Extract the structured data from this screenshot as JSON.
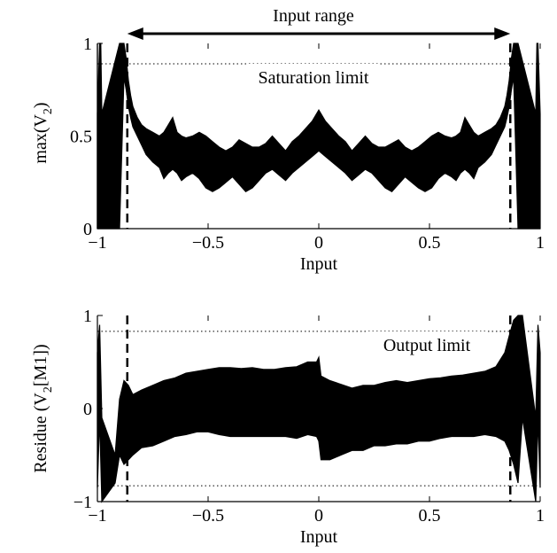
{
  "chart_data": [
    {
      "type": "line",
      "title": "",
      "xlabel": "Input",
      "ylabel_main": "max(V",
      "ylabel_sub": "2",
      "ylabel_tail": ")",
      "xlim": [
        -1,
        1
      ],
      "ylim": [
        0,
        1
      ],
      "xticks": [
        -1,
        -0.5,
        0,
        0.5,
        1
      ],
      "xtick_labels": [
        "−1",
        "−0.5",
        "0",
        "0.5",
        "1"
      ],
      "yticks": [
        0,
        0.5,
        1
      ],
      "ytick_labels": [
        "0",
        "0.5",
        "1"
      ],
      "grid": false,
      "reference_lines": [
        {
          "orientation": "horizontal",
          "value": 0.89,
          "style": "dotted",
          "label": "Saturation limit"
        },
        {
          "orientation": "vertical",
          "value": -0.865,
          "style": "dashed"
        },
        {
          "orientation": "vertical",
          "value": 0.865,
          "style": "dashed"
        }
      ],
      "annotations": [
        {
          "text": "Input range",
          "type": "double-arrow",
          "from_x": -0.865,
          "to_x": 0.865
        }
      ],
      "series": [
        {
          "x": [
            -1.0,
            -0.99,
            -0.985,
            -0.98,
            -0.9,
            -0.88,
            -0.87,
            -0.86,
            -0.85,
            -0.84,
            -0.82,
            -0.8,
            -0.78,
            -0.75,
            -0.72,
            -0.7,
            -0.68,
            -0.66,
            -0.64,
            -0.62,
            -0.6,
            -0.57,
            -0.54,
            -0.51,
            -0.48,
            -0.45,
            -0.42,
            -0.39,
            -0.36,
            -0.33,
            -0.3,
            -0.27,
            -0.24,
            -0.21,
            -0.18,
            -0.15,
            -0.12,
            -0.09,
            -0.06,
            -0.03,
            0.0,
            0.03,
            0.06,
            0.09,
            0.12,
            0.15,
            0.18,
            0.21,
            0.24,
            0.27,
            0.3,
            0.33,
            0.36,
            0.39,
            0.42,
            0.45,
            0.48,
            0.51,
            0.54,
            0.57,
            0.6,
            0.62,
            0.64,
            0.66,
            0.68,
            0.7,
            0.72,
            0.75,
            0.78,
            0.8,
            0.82,
            0.84,
            0.85,
            0.86,
            0.87,
            0.88,
            0.9,
            0.98,
            0.985,
            0.99,
            1.0
          ],
          "upper": [
            0.62,
            1.0,
            1.0,
            0.62,
            1.0,
            1.0,
            0.92,
            0.8,
            0.72,
            0.66,
            0.6,
            0.56,
            0.54,
            0.52,
            0.5,
            0.52,
            0.56,
            0.6,
            0.52,
            0.5,
            0.49,
            0.5,
            0.52,
            0.5,
            0.47,
            0.44,
            0.42,
            0.44,
            0.48,
            0.46,
            0.44,
            0.44,
            0.46,
            0.5,
            0.46,
            0.42,
            0.47,
            0.5,
            0.54,
            0.58,
            0.64,
            0.58,
            0.54,
            0.5,
            0.47,
            0.42,
            0.46,
            0.5,
            0.46,
            0.44,
            0.44,
            0.46,
            0.48,
            0.44,
            0.42,
            0.44,
            0.47,
            0.5,
            0.52,
            0.5,
            0.49,
            0.5,
            0.52,
            0.6,
            0.56,
            0.52,
            0.5,
            0.52,
            0.54,
            0.56,
            0.6,
            0.66,
            0.72,
            0.8,
            0.92,
            1.0,
            1.0,
            0.62,
            1.0,
            1.0,
            0.62
          ],
          "lower": [
            0.0,
            0.0,
            0.0,
            0.0,
            0.0,
            0.82,
            0.75,
            0.66,
            0.6,
            0.55,
            0.5,
            0.45,
            0.4,
            0.36,
            0.33,
            0.27,
            0.3,
            0.32,
            0.3,
            0.26,
            0.28,
            0.3,
            0.27,
            0.22,
            0.2,
            0.22,
            0.25,
            0.28,
            0.24,
            0.2,
            0.22,
            0.26,
            0.3,
            0.32,
            0.29,
            0.26,
            0.3,
            0.33,
            0.36,
            0.39,
            0.42,
            0.39,
            0.36,
            0.33,
            0.3,
            0.26,
            0.29,
            0.32,
            0.3,
            0.26,
            0.22,
            0.2,
            0.24,
            0.28,
            0.25,
            0.22,
            0.2,
            0.22,
            0.27,
            0.3,
            0.28,
            0.26,
            0.3,
            0.32,
            0.3,
            0.27,
            0.33,
            0.36,
            0.4,
            0.45,
            0.5,
            0.55,
            0.6,
            0.66,
            0.75,
            0.82,
            0.0,
            0.0,
            0.0,
            0.0,
            0.0
          ]
        }
      ]
    },
    {
      "type": "line",
      "title": "",
      "xlabel": "Input",
      "ylabel_main": "Residue (V",
      "ylabel_sub": "2",
      "ylabel_tail": "[M1])",
      "xlim": [
        -1,
        1
      ],
      "ylim": [
        -1,
        1
      ],
      "xticks": [
        -1,
        -0.5,
        0,
        0.5,
        1
      ],
      "xtick_labels": [
        "−1",
        "−0.5",
        "0",
        "0.5",
        "1"
      ],
      "yticks": [
        -1,
        0,
        1
      ],
      "ytick_labels": [
        "−1",
        "0",
        "1"
      ],
      "grid": false,
      "reference_lines": [
        {
          "orientation": "horizontal",
          "value": 0.83,
          "style": "dotted",
          "label": "Output limit"
        },
        {
          "orientation": "horizontal",
          "value": -0.83,
          "style": "dotted"
        },
        {
          "orientation": "vertical",
          "value": -0.865,
          "style": "dashed"
        },
        {
          "orientation": "vertical",
          "value": 0.865,
          "style": "dashed"
        }
      ],
      "series": [
        {
          "x": [
            -1.0,
            -0.99,
            -0.98,
            -0.92,
            -0.9,
            -0.88,
            -0.86,
            -0.84,
            -0.8,
            -0.75,
            -0.7,
            -0.65,
            -0.6,
            -0.55,
            -0.5,
            -0.45,
            -0.4,
            -0.35,
            -0.3,
            -0.25,
            -0.2,
            -0.15,
            -0.1,
            -0.05,
            -0.01,
            0.0,
            0.01,
            0.05,
            0.1,
            0.15,
            0.2,
            0.25,
            0.3,
            0.35,
            0.4,
            0.45,
            0.5,
            0.55,
            0.6,
            0.65,
            0.7,
            0.75,
            0.8,
            0.84,
            0.86,
            0.88,
            0.9,
            0.92,
            0.98,
            0.99,
            1.0
          ],
          "upper": [
            0.6,
            0.9,
            -0.1,
            -0.5,
            0.1,
            0.3,
            0.25,
            0.15,
            0.2,
            0.25,
            0.3,
            0.33,
            0.38,
            0.4,
            0.42,
            0.44,
            0.44,
            0.43,
            0.44,
            0.42,
            0.42,
            0.44,
            0.45,
            0.5,
            0.5,
            0.55,
            0.35,
            0.3,
            0.26,
            0.22,
            0.25,
            0.25,
            0.28,
            0.3,
            0.28,
            0.3,
            0.32,
            0.33,
            0.35,
            0.36,
            0.38,
            0.4,
            0.45,
            0.6,
            0.78,
            0.95,
            1.0,
            1.0,
            -0.1,
            0.9,
            0.6
          ],
          "lower": [
            -0.85,
            -0.1,
            -1.0,
            -0.8,
            -0.5,
            -0.6,
            -0.55,
            -0.5,
            -0.42,
            -0.4,
            -0.35,
            -0.3,
            -0.28,
            -0.25,
            -0.25,
            -0.28,
            -0.3,
            -0.3,
            -0.3,
            -0.3,
            -0.3,
            -0.3,
            -0.32,
            -0.28,
            -0.3,
            -0.35,
            -0.55,
            -0.55,
            -0.5,
            -0.45,
            -0.45,
            -0.4,
            -0.4,
            -0.38,
            -0.38,
            -0.35,
            -0.35,
            -0.32,
            -0.3,
            -0.3,
            -0.3,
            -0.28,
            -0.3,
            -0.35,
            -0.45,
            -0.6,
            -0.8,
            -0.1,
            -1.0,
            -0.1,
            -0.85
          ]
        }
      ]
    }
  ]
}
